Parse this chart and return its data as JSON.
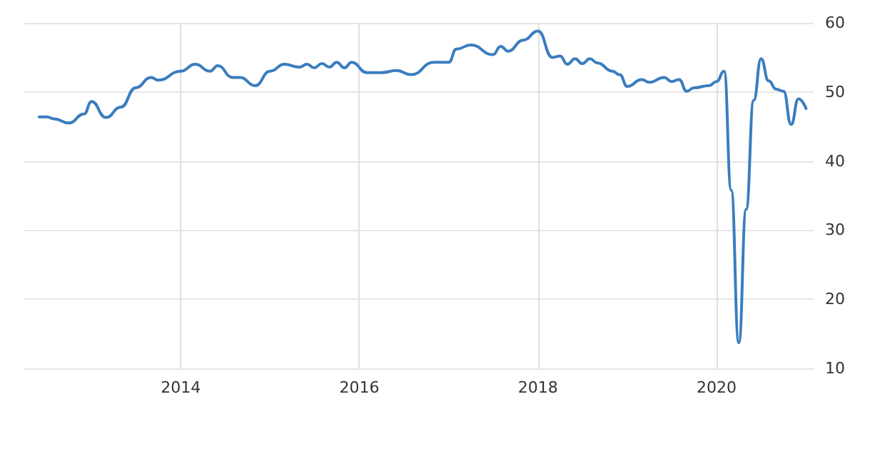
{
  "chart_data": {
    "type": "line",
    "x": [
      "2012-06",
      "2012-07",
      "2012-08",
      "2012-10",
      "2012-12",
      "2013-01",
      "2013-03",
      "2013-05",
      "2013-07",
      "2013-09",
      "2013-10",
      "2014-01",
      "2014-03",
      "2014-05",
      "2014-06",
      "2014-08",
      "2014-09",
      "2014-11",
      "2015-01",
      "2015-03",
      "2015-05",
      "2015-06",
      "2015-07",
      "2015-08",
      "2015-09",
      "2015-10",
      "2015-11",
      "2015-12",
      "2016-02",
      "2016-04",
      "2016-06",
      "2016-08",
      "2016-11",
      "2017-01",
      "2017-02",
      "2017-04",
      "2017-07",
      "2017-08",
      "2017-09",
      "2017-11",
      "2018-01",
      "2018-03",
      "2018-04",
      "2018-05",
      "2018-06",
      "2018-07",
      "2018-08",
      "2018-09",
      "2018-11",
      "2018-12",
      "2019-01",
      "2019-03",
      "2019-04",
      "2019-06",
      "2019-07",
      "2019-08",
      "2019-09",
      "2019-10",
      "2019-12",
      "2020-01",
      "2020-02",
      "2020-03",
      "2020-04",
      "2020-05",
      "2020-06",
      "2020-07",
      "2020-08",
      "2020-09",
      "2020-10",
      "2020-11",
      "2020-12",
      "2021-01"
    ],
    "series": [
      {
        "color": "#3a7dbf",
        "values": [
          46.4,
          46.4,
          46.1,
          45.5,
          46.8,
          48.6,
          46.3,
          47.8,
          50.6,
          52.1,
          51.7,
          53.0,
          54.0,
          53.0,
          53.8,
          52.1,
          52.1,
          50.9,
          53.0,
          54.0,
          53.6,
          54.0,
          53.5,
          54.1,
          53.6,
          54.3,
          53.5,
          54.3,
          52.8,
          52.8,
          53.1,
          52.5,
          54.3,
          54.3,
          56.2,
          56.8,
          55.4,
          56.6,
          55.9,
          57.5,
          58.8,
          55.0,
          55.2,
          54.0,
          54.8,
          54.1,
          54.8,
          54.2,
          53.0,
          52.5,
          50.8,
          51.8,
          51.4,
          52.1,
          51.5,
          51.8,
          50.1,
          50.6,
          50.9,
          51.5,
          53.0,
          35.8,
          13.7,
          33.0,
          48.8,
          54.8,
          51.6,
          50.4,
          50.1,
          45.3,
          49.0,
          47.6
        ]
      }
    ],
    "xlim": [
      "2012-04",
      "2021-02"
    ],
    "xticks": [
      "2014",
      "2016",
      "2018",
      "2020"
    ],
    "ylim": [
      10,
      60
    ],
    "yticks": [
      10,
      20,
      30,
      40,
      50,
      60
    ],
    "grid": true,
    "marker": "none",
    "line_style": "solid"
  }
}
